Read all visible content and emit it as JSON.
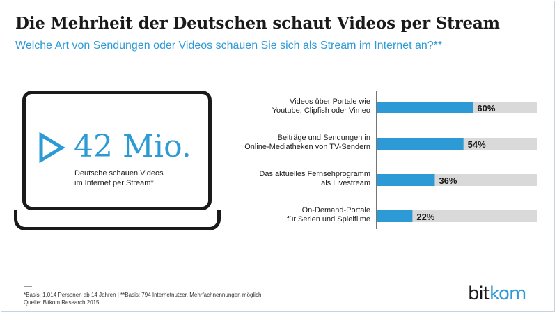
{
  "title": "Die Mehrheit der Deutschen schaut Videos per Stream",
  "subtitle": "Welche Art von Sendungen oder Videos schauen Sie sich als Stream im Internet an?**",
  "highlight": {
    "number": "42 Mio.",
    "caption_line1": "Deutsche schauen Videos",
    "caption_line2": "im Internet per Stream*"
  },
  "footnote": {
    "line1": "*Basis: 1.014 Personen ab 14 Jahren | **Basis: 794 Internetnutzer, Mehrfachnennungen möglich",
    "line2": "Quelle: Bitkom Research 2015"
  },
  "logo": {
    "part1": "bit",
    "part2": "kom"
  },
  "colors": {
    "accent": "#2d9ad6",
    "track": "#d9d9d9",
    "text": "#1a1a1a"
  },
  "icons": [
    "play-icon",
    "monitor-icon"
  ],
  "chart_data": {
    "type": "bar",
    "orientation": "horizontal",
    "categories": [
      [
        "Videos über Portale wie",
        "Youtube, Clipfish oder Vimeo"
      ],
      [
        "Beiträge und Sendungen in",
        "Online-Mediatheken von TV-Sendern"
      ],
      [
        "Das aktuelles Fernsehprogramm",
        "als Livestream"
      ],
      [
        "On-Demand-Portale",
        "für Serien und Spielfilme"
      ]
    ],
    "values": [
      60,
      54,
      36,
      22
    ],
    "value_labels": [
      "60%",
      "54%",
      "36%",
      "22%"
    ],
    "xlim": [
      0,
      100
    ],
    "unit": "%"
  }
}
